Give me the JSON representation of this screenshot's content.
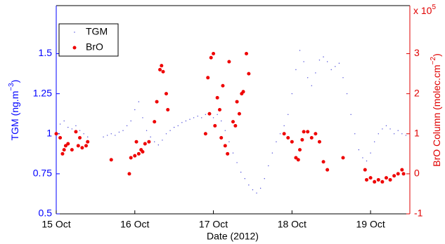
{
  "chart_data": {
    "type": "scatter",
    "xlabel": "Date (2012)",
    "ylabel": [
      "TGM (ng.m",
      "−3",
      ")"
    ],
    "y2label": [
      "BrO Column (molec.cm",
      "−2",
      ")"
    ],
    "y2_multiplier": [
      "x 10",
      "5"
    ],
    "xlim": [
      15,
      19.5
    ],
    "xticks": [
      {
        "value": 15,
        "label": "15 Oct"
      },
      {
        "value": 16,
        "label": "16 Oct"
      },
      {
        "value": 17,
        "label": "17 Oct"
      },
      {
        "value": 18,
        "label": "18 Oct"
      },
      {
        "value": 19,
        "label": "19 Oct"
      }
    ],
    "ylim": [
      0.5,
      1.8
    ],
    "yticks": [
      0.5,
      0.75,
      1,
      1.25,
      1.5
    ],
    "y2lim": [
      -1,
      4.2
    ],
    "y2ticks": [
      -1,
      0,
      1,
      2,
      3
    ],
    "ycolor": "#0000ff",
    "y2color": "#e00000",
    "legend": "top-left",
    "series": [
      {
        "name": "TGM",
        "color": "#4b4bd8",
        "size": 0.7,
        "x": [
          15.0,
          15.05,
          15.1,
          15.15,
          15.2,
          15.25,
          15.3,
          15.35,
          15.4,
          15.6,
          15.65,
          15.7,
          15.75,
          15.8,
          15.85,
          15.9,
          15.95,
          16.0,
          16.05,
          16.1,
          16.15,
          16.2,
          16.25,
          16.3,
          16.35,
          16.4,
          16.45,
          16.5,
          16.55,
          16.6,
          16.65,
          16.7,
          16.75,
          16.8,
          16.85,
          16.9,
          16.95,
          17.0,
          17.05,
          17.1,
          17.15,
          17.2,
          17.25,
          17.3,
          17.35,
          17.4,
          17.45,
          17.5,
          17.55,
          17.6,
          17.65,
          17.7,
          17.75,
          17.8,
          17.85,
          17.9,
          17.95,
          18.0,
          18.05,
          18.1,
          18.15,
          18.2,
          18.25,
          18.3,
          18.35,
          18.4,
          18.45,
          18.5,
          18.55,
          18.6,
          18.65,
          18.7,
          18.75,
          18.8,
          18.85,
          18.9,
          18.95,
          19.0,
          19.05,
          19.1,
          19.15,
          19.2,
          19.25,
          19.3,
          19.35,
          19.4,
          19.45
        ],
        "values": [
          1.02,
          1.06,
          1.08,
          1.04,
          1.03,
          1.05,
          1.02,
          1.0,
          0.98,
          0.98,
          0.99,
          1.0,
          0.99,
          1.01,
          1.02,
          1.05,
          1.08,
          1.15,
          1.2,
          1.1,
          1.02,
          0.98,
          0.95,
          0.93,
          0.96,
          1.0,
          1.02,
          1.04,
          1.05,
          1.07,
          1.08,
          1.09,
          1.1,
          1.11,
          1.1,
          1.12,
          1.13,
          1.1,
          1.12,
          1.08,
          1.02,
          0.95,
          0.88,
          0.82,
          0.76,
          0.72,
          0.68,
          0.65,
          0.63,
          0.66,
          0.72,
          0.8,
          0.88,
          0.95,
          1.0,
          1.05,
          1.12,
          1.25,
          1.4,
          1.52,
          1.45,
          1.35,
          1.3,
          1.38,
          1.46,
          1.48,
          1.45,
          1.4,
          1.42,
          1.44,
          1.35,
          1.25,
          1.12,
          1.0,
          0.9,
          0.85,
          0.83,
          0.88,
          0.95,
          1.0,
          1.03,
          1.05,
          1.03,
          1.0,
          1.02,
          1.0,
          0.99
        ]
      },
      {
        "name": "BrO",
        "color": "#ee0000",
        "size": 2.5,
        "axis": "y2",
        "x": [
          15.0,
          15.05,
          15.08,
          15.1,
          15.12,
          15.15,
          15.2,
          15.25,
          15.28,
          15.3,
          15.33,
          15.38,
          15.4,
          15.7,
          15.93,
          15.95,
          16.0,
          16.02,
          16.05,
          16.08,
          16.1,
          16.13,
          16.18,
          16.25,
          16.28,
          16.32,
          16.34,
          16.36,
          16.4,
          16.42,
          16.9,
          16.93,
          16.95,
          16.97,
          17.0,
          17.02,
          17.05,
          17.08,
          17.1,
          17.12,
          17.15,
          17.18,
          17.2,
          17.25,
          17.28,
          17.3,
          17.33,
          17.36,
          17.38,
          17.42,
          17.45,
          17.9,
          17.95,
          18.0,
          18.05,
          18.08,
          18.1,
          18.13,
          18.15,
          18.2,
          18.25,
          18.3,
          18.35,
          18.4,
          18.45,
          18.65,
          18.93,
          18.95,
          19.0,
          19.05,
          19.1,
          19.15,
          19.2,
          19.25,
          19.3,
          19.35,
          19.4,
          19.42
        ],
        "values": [
          1.0,
          0.9,
          0.5,
          0.6,
          0.7,
          0.75,
          0.6,
          1.05,
          0.7,
          0.9,
          0.65,
          0.7,
          0.8,
          0.35,
          0.0,
          0.4,
          0.45,
          0.8,
          0.5,
          0.6,
          0.55,
          0.75,
          0.8,
          1.3,
          1.8,
          2.6,
          2.7,
          2.55,
          2.0,
          1.6,
          1.0,
          2.4,
          1.5,
          2.9,
          3.0,
          1.2,
          1.9,
          1.6,
          0.9,
          2.2,
          0.7,
          0.5,
          2.8,
          1.3,
          1.2,
          1.8,
          1.5,
          2.0,
          2.05,
          3.0,
          2.5,
          1.0,
          0.9,
          0.8,
          0.4,
          0.35,
          0.6,
          0.85,
          1.05,
          1.05,
          0.9,
          1.0,
          0.8,
          0.3,
          0.1,
          0.4,
          0.1,
          -0.15,
          -0.1,
          -0.2,
          -0.15,
          -0.2,
          -0.1,
          -0.15,
          -0.05,
          0.0,
          0.1,
          0.0
        ]
      }
    ]
  }
}
